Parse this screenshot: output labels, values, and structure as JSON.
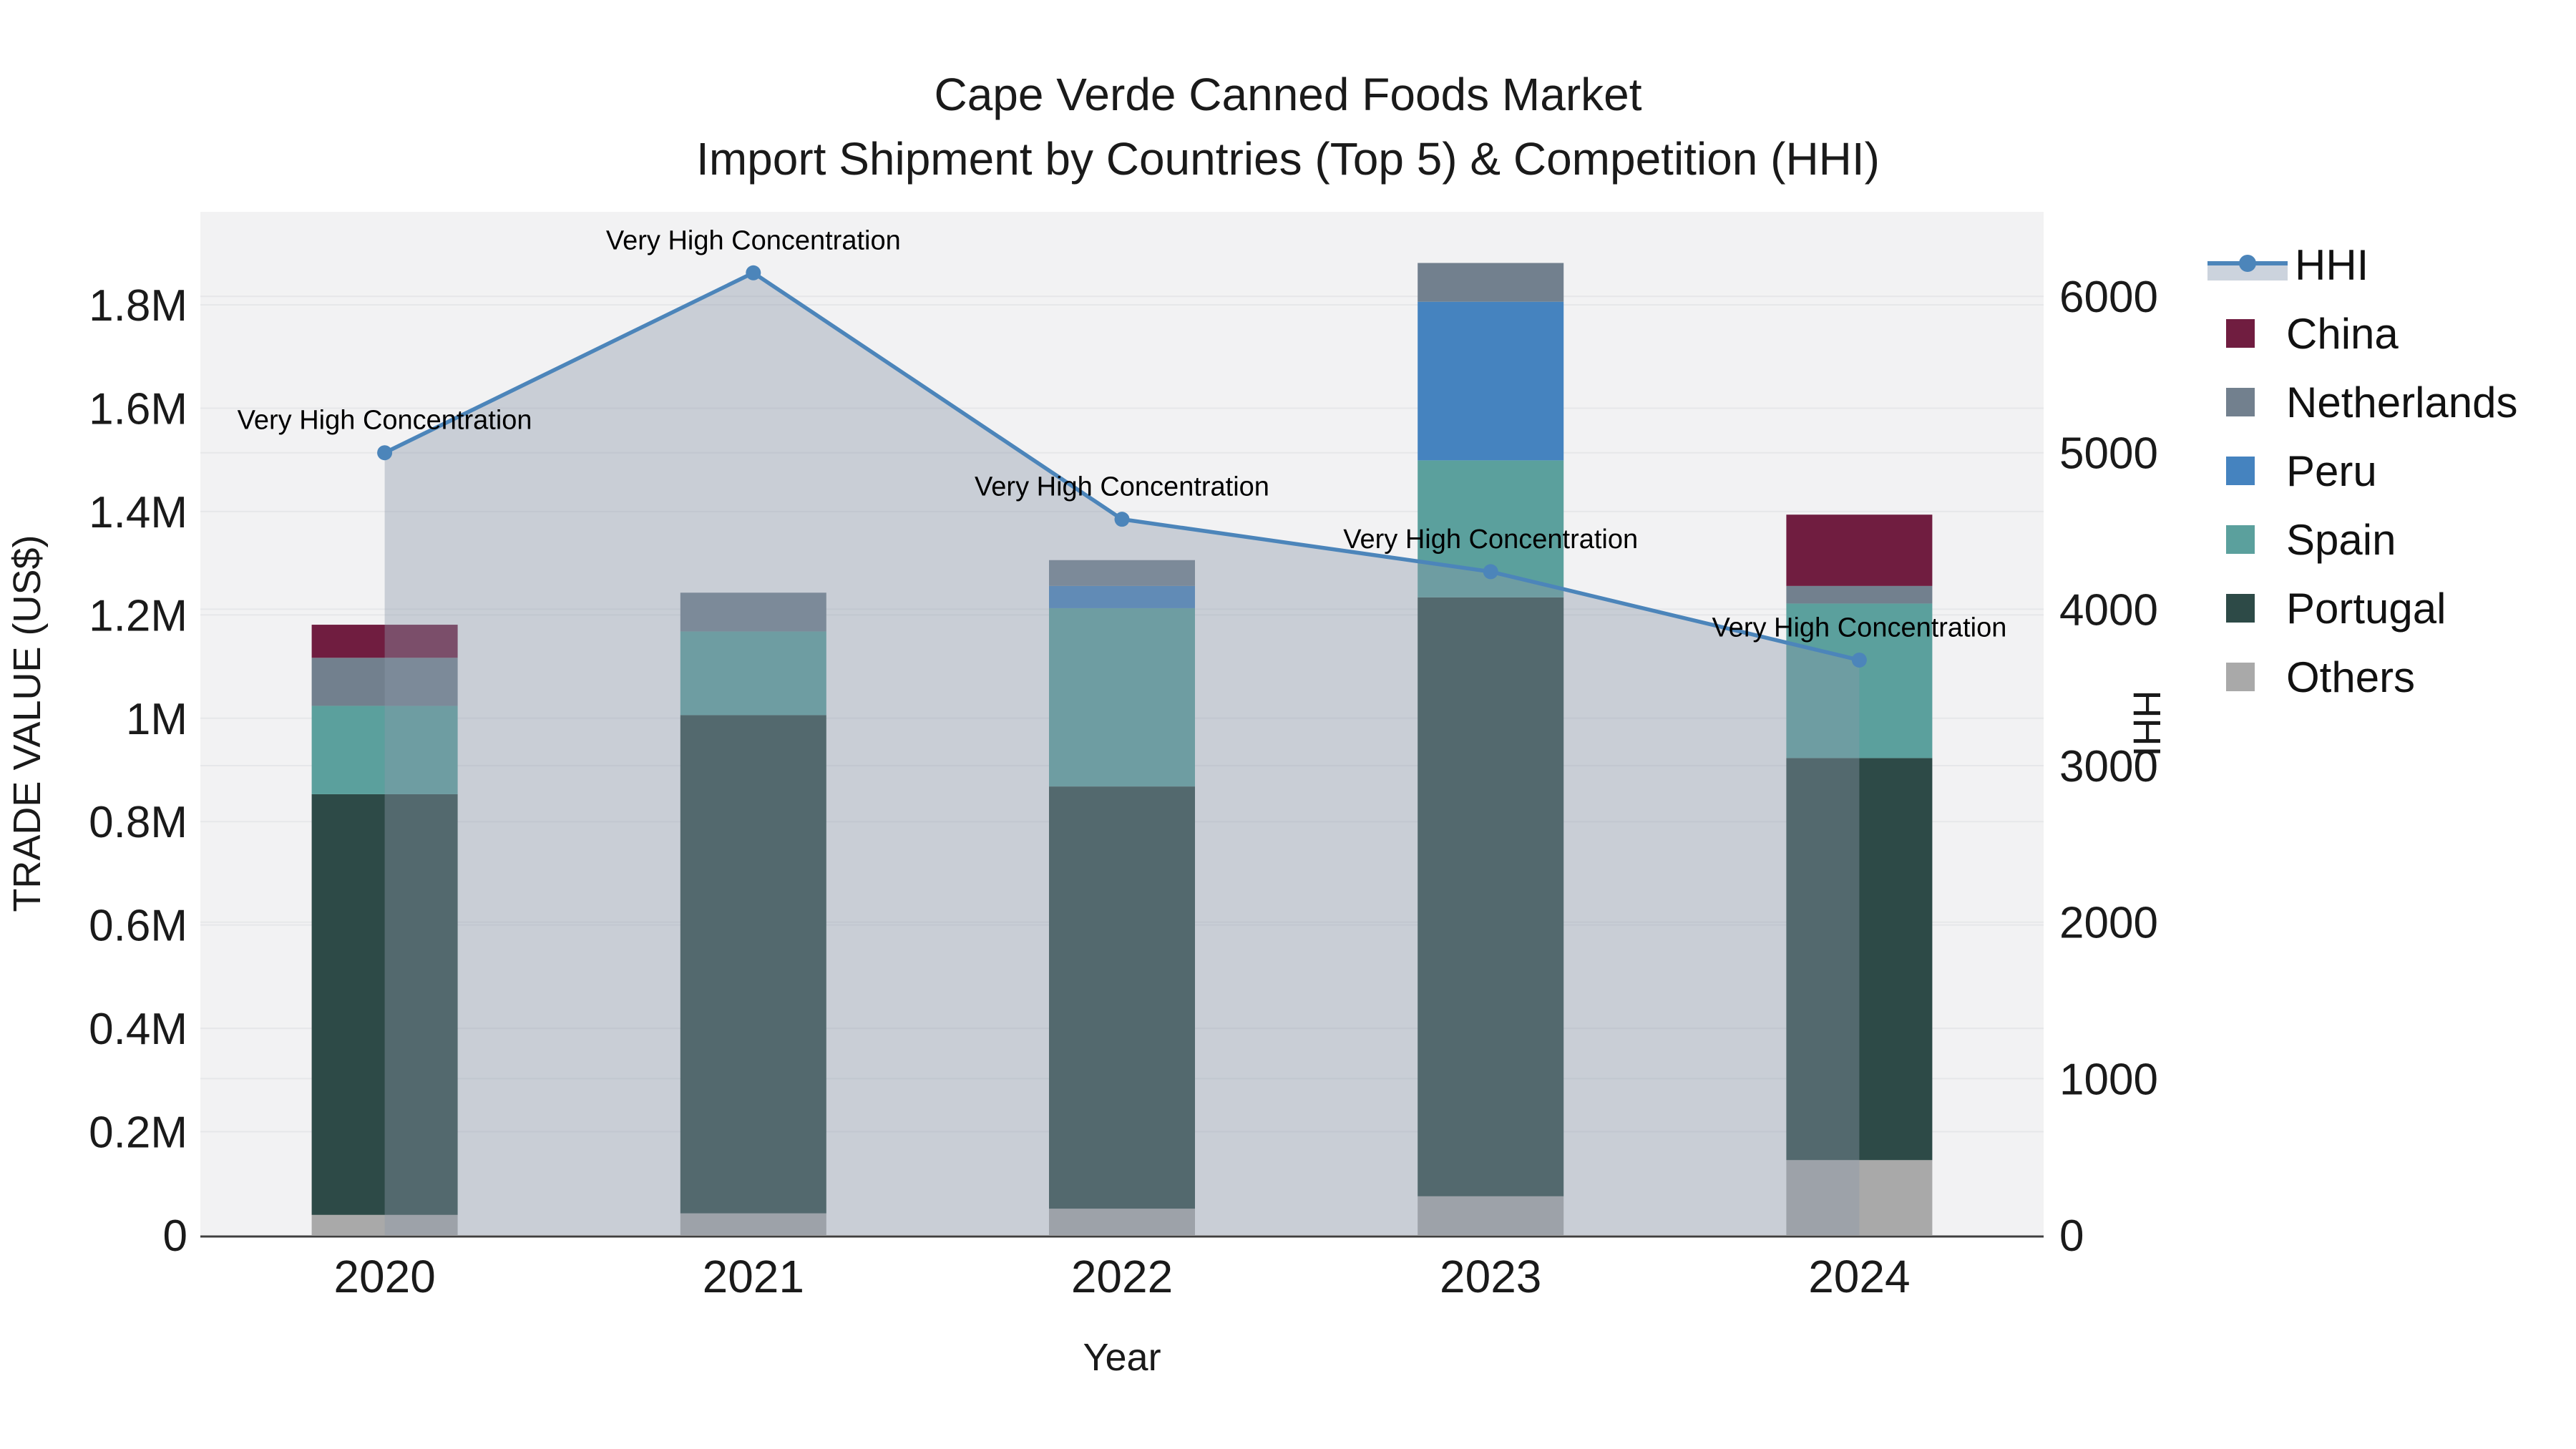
{
  "chart_data": {
    "type": "combo-stacked-bar-line",
    "title": "Cape Verde Canned Foods Market",
    "subtitle": "Import Shipment by Countries (Top 5) & Competition (HHI)",
    "categories": [
      "2020",
      "2021",
      "2022",
      "2023",
      "2024"
    ],
    "axes": {
      "x": {
        "title": "Year"
      },
      "left": {
        "title": "TRADE VALUE (US$)",
        "max": 1980000,
        "ticks": [
          {
            "label": "0",
            "value": 0
          },
          {
            "label": "0.2M",
            "value": 200000
          },
          {
            "label": "0.4M",
            "value": 400000
          },
          {
            "label": "0.6M",
            "value": 600000
          },
          {
            "label": "0.8M",
            "value": 800000
          },
          {
            "label": "1M",
            "value": 1000000
          },
          {
            "label": "1.2M",
            "value": 1200000
          },
          {
            "label": "1.4M",
            "value": 1400000
          },
          {
            "label": "1.6M",
            "value": 1600000
          },
          {
            "label": "1.8M",
            "value": 1800000
          }
        ]
      },
      "right": {
        "title": "HHI",
        "max": 6540,
        "ticks": [
          {
            "label": "0",
            "value": 0
          },
          {
            "label": "1000",
            "value": 1000
          },
          {
            "label": "2000",
            "value": 2000
          },
          {
            "label": "3000",
            "value": 3000
          },
          {
            "label": "4000",
            "value": 4000
          },
          {
            "label": "5000",
            "value": 5000
          },
          {
            "label": "6000",
            "value": 6000
          }
        ]
      }
    },
    "bar_series": [
      {
        "name": "China",
        "color": "#701d40",
        "values": [
          64000,
          0,
          0,
          0,
          138000
        ]
      },
      {
        "name": "Netherlands",
        "color": "#72808e",
        "values": [
          93000,
          75000,
          50000,
          75000,
          34000
        ]
      },
      {
        "name": "Peru",
        "color": "#4583bf",
        "values": [
          0,
          0,
          43000,
          307000,
          0
        ]
      },
      {
        "name": "Spain",
        "color": "#5ba09d",
        "values": [
          171000,
          162000,
          345000,
          265000,
          299000
        ]
      },
      {
        "name": "Portugal",
        "color": "#2d4a47",
        "values": [
          814000,
          964000,
          817000,
          1159000,
          778000
        ]
      },
      {
        "name": "Others",
        "color": "#a9a9a9",
        "values": [
          39000,
          42000,
          51000,
          75000,
          145000
        ]
      }
    ],
    "stack_order_bottom_to_top": [
      "Others",
      "Portugal",
      "Spain",
      "Peru",
      "Netherlands",
      "China"
    ],
    "line_series": {
      "name": "HHI",
      "color": "#4c85ba",
      "area_color": "rgba(140,152,170,0.4)",
      "legend_band_color": "#ccd3dd",
      "values": [
        5000,
        6150,
        4575,
        4240,
        3675
      ],
      "annotation_text": "Very High Concentration"
    },
    "style": {
      "plot_bg": "#f2f2f3",
      "grid": "#e6e7e9",
      "axis_line": "#3f3f3f",
      "text": "#1a1a1a",
      "figure_bg": "#ffffff"
    }
  }
}
